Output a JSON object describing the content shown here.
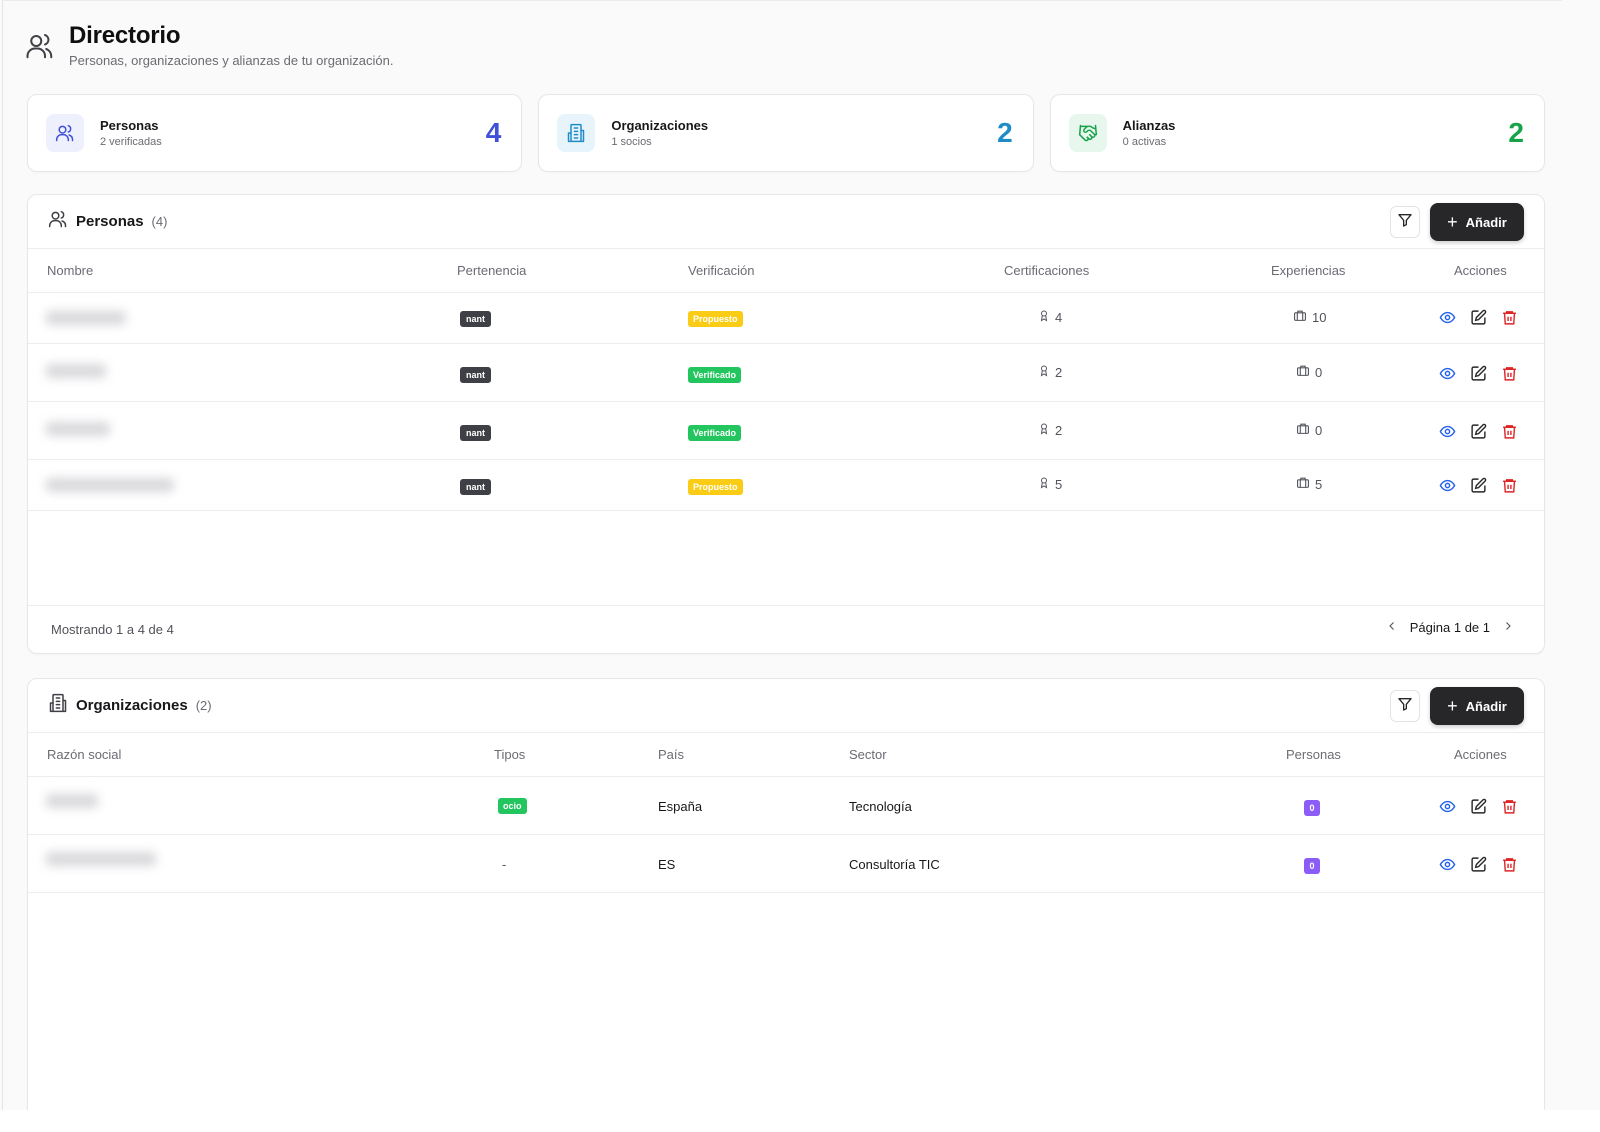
{
  "header": {
    "title": "Directorio",
    "subtitle": "Personas, organizaciones y alianzas de tu organización."
  },
  "stats": [
    {
      "label": "Personas",
      "sub": "2 verificadas",
      "value": "4",
      "color": "#4051d8",
      "icon": "users-icon",
      "icon_bg": "#eef0fd"
    },
    {
      "label": "Organizaciones",
      "sub": "1 socios",
      "value": "2",
      "color": "#1f8cc7",
      "icon": "building-icon",
      "icon_bg": "#e8f4fb"
    },
    {
      "label": "Alianzas",
      "sub": "0 activas",
      "value": "2",
      "color": "#16a34a",
      "icon": "handshake-icon",
      "icon_bg": "#e8f7ee"
    }
  ],
  "personas": {
    "title": "Personas",
    "count": "(4)",
    "add_label": "Añadir",
    "columns": [
      "Nombre",
      "Pertenencia",
      "Verificación",
      "Certificaciones",
      "Experiencias",
      "Acciones"
    ],
    "rows": [
      {
        "pertenencia": "nant",
        "verificacion": "Propuesto",
        "verif_type": "yellow",
        "certificaciones": "4",
        "experiencias": "10"
      },
      {
        "pertenencia": "nant",
        "verificacion": "Verificado",
        "verif_type": "green",
        "certificaciones": "2",
        "experiencias": "0"
      },
      {
        "pertenencia": "nant",
        "verificacion": "Verificado",
        "verif_type": "green",
        "certificaciones": "2",
        "experiencias": "0"
      },
      {
        "pertenencia": "nant",
        "verificacion": "Propuesto",
        "verif_type": "yellow",
        "certificaciones": "5",
        "experiencias": "5"
      }
    ],
    "showing": "Mostrando 1 a 4 de 4",
    "page_label": "Página 1 de 1"
  },
  "organizaciones": {
    "title": "Organizaciones",
    "count": "(2)",
    "add_label": "Añadir",
    "columns": [
      "Razón social",
      "Tipos",
      "País",
      "Sector",
      "Personas",
      "Acciones"
    ],
    "rows": [
      {
        "tipos": "ocio",
        "pais": "España",
        "sector": "Tecnología",
        "personas": "0"
      },
      {
        "tipos": "-",
        "pais": "ES",
        "sector": "Consultoría TIC",
        "personas": "0"
      }
    ]
  }
}
